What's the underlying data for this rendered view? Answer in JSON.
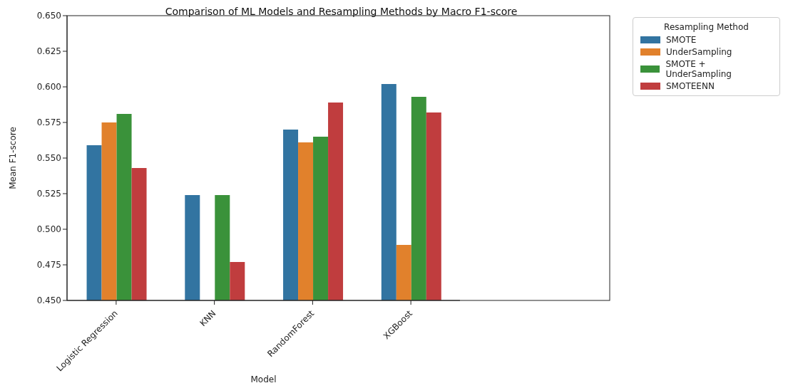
{
  "chart_data": {
    "type": "bar",
    "title": "Comparison of ML Models and Resampling Methods by Macro F1-score",
    "xlabel": "Model",
    "ylabel": "Mean F1-score",
    "legend_title": "Resampling Method",
    "legend": "top right",
    "categories": [
      "Logistic Regression",
      "KNN",
      "RandomForest",
      "XGBoost"
    ],
    "series": [
      {
        "name": "SMOTE",
        "color": "#3274a1",
        "values": [
          0.559,
          0.524,
          0.57,
          0.602
        ]
      },
      {
        "name": "UnderSampling",
        "color": "#e1812c",
        "values": [
          0.575,
          null,
          0.561,
          0.489
        ]
      },
      {
        "name": "SMOTE + UnderSampling",
        "color": "#3a923a",
        "values": [
          0.581,
          0.524,
          0.565,
          0.593
        ]
      },
      {
        "name": "SMOTEENN",
        "color": "#c03d3e",
        "values": [
          0.543,
          0.477,
          0.589,
          0.582
        ]
      }
    ],
    "ylim": [
      0.45,
      0.65
    ],
    "yticks": [
      {
        "value": 0.45,
        "label": "0.450"
      },
      {
        "value": 0.475,
        "label": "0.475"
      },
      {
        "value": 0.5,
        "label": "0.500"
      },
      {
        "value": 0.525,
        "label": "0.525"
      },
      {
        "value": 0.55,
        "label": "0.550"
      },
      {
        "value": 0.575,
        "label": "0.575"
      },
      {
        "value": 0.6,
        "label": "0.600"
      },
      {
        "value": 0.625,
        "label": "0.625"
      },
      {
        "value": 0.65,
        "label": "0.650"
      }
    ],
    "grid": false
  }
}
